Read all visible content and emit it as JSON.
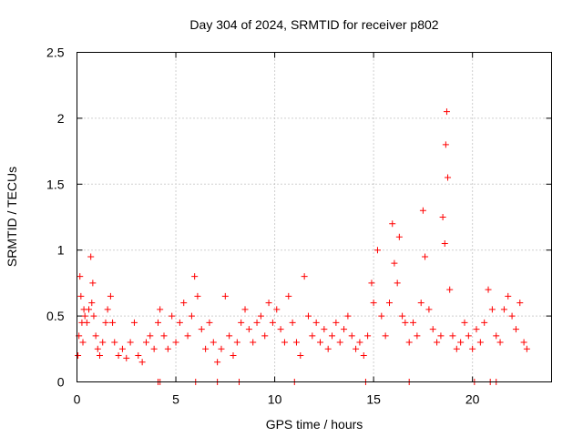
{
  "chart_data": {
    "type": "scatter",
    "title": "Day 304 of 2024, SRMTID for receiver p802",
    "xlabel": "GPS time / hours",
    "ylabel": "SRMTID / TECUs",
    "xlim": [
      0,
      24
    ],
    "ylim": [
      0,
      2.5
    ],
    "x_ticks": [
      0,
      5,
      10,
      15,
      20
    ],
    "y_ticks": [
      0,
      0.5,
      1,
      1.5,
      2,
      2.5
    ],
    "x_tick_labels": [
      "0",
      "5",
      "10",
      "15",
      "20"
    ],
    "y_tick_labels": [
      "0",
      "0.5",
      "1",
      "1.5",
      "2",
      "2.5"
    ],
    "grid": true,
    "marker": "+",
    "color": "#ff0000",
    "series": [
      {
        "name": "SRMTID",
        "points": [
          [
            0.05,
            0.2
          ],
          [
            0.1,
            0.35
          ],
          [
            0.15,
            0.8
          ],
          [
            0.2,
            0.65
          ],
          [
            0.25,
            0.45
          ],
          [
            0.3,
            0.3
          ],
          [
            0.35,
            0.55
          ],
          [
            0.4,
            0.5
          ],
          [
            0.5,
            0.45
          ],
          [
            0.6,
            0.55
          ],
          [
            0.7,
            0.95
          ],
          [
            0.75,
            0.6
          ],
          [
            0.8,
            0.75
          ],
          [
            0.85,
            0.5
          ],
          [
            0.95,
            0.35
          ],
          [
            1.05,
            0.25
          ],
          [
            1.15,
            0.2
          ],
          [
            1.3,
            0.3
          ],
          [
            1.45,
            0.45
          ],
          [
            1.55,
            0.55
          ],
          [
            1.7,
            0.65
          ],
          [
            1.8,
            0.45
          ],
          [
            1.9,
            0.3
          ],
          [
            2.1,
            0.2
          ],
          [
            2.3,
            0.25
          ],
          [
            2.5,
            0.18
          ],
          [
            2.7,
            0.3
          ],
          [
            2.9,
            0.45
          ],
          [
            3.1,
            0.2
          ],
          [
            3.3,
            0.15
          ],
          [
            3.5,
            0.3
          ],
          [
            3.7,
            0.35
          ],
          [
            3.9,
            0.25
          ],
          [
            4.1,
            0.45
          ],
          [
            4.2,
            0.55
          ],
          [
            4.4,
            0.35
          ],
          [
            4.6,
            0.25
          ],
          [
            4.8,
            0.5
          ],
          [
            5.0,
            0.3
          ],
          [
            5.2,
            0.45
          ],
          [
            5.4,
            0.6
          ],
          [
            5.6,
            0.35
          ],
          [
            5.8,
            0.5
          ],
          [
            5.95,
            0.8
          ],
          [
            6.1,
            0.65
          ],
          [
            6.3,
            0.4
          ],
          [
            6.5,
            0.25
          ],
          [
            6.7,
            0.45
          ],
          [
            6.9,
            0.3
          ],
          [
            7.1,
            0.15
          ],
          [
            7.3,
            0.25
          ],
          [
            7.5,
            0.65
          ],
          [
            7.7,
            0.35
          ],
          [
            7.9,
            0.2
          ],
          [
            8.1,
            0.3
          ],
          [
            8.3,
            0.45
          ],
          [
            8.5,
            0.55
          ],
          [
            8.7,
            0.4
          ],
          [
            8.9,
            0.3
          ],
          [
            9.1,
            0.45
          ],
          [
            9.3,
            0.5
          ],
          [
            9.5,
            0.35
          ],
          [
            9.7,
            0.6
          ],
          [
            9.9,
            0.45
          ],
          [
            10.1,
            0.55
          ],
          [
            10.3,
            0.4
          ],
          [
            10.5,
            0.3
          ],
          [
            10.7,
            0.65
          ],
          [
            10.9,
            0.45
          ],
          [
            11.1,
            0.3
          ],
          [
            11.3,
            0.2
          ],
          [
            11.5,
            0.8
          ],
          [
            11.7,
            0.5
          ],
          [
            11.9,
            0.35
          ],
          [
            12.1,
            0.45
          ],
          [
            12.3,
            0.3
          ],
          [
            12.5,
            0.4
          ],
          [
            12.7,
            0.25
          ],
          [
            12.9,
            0.35
          ],
          [
            13.1,
            0.45
          ],
          [
            13.3,
            0.3
          ],
          [
            13.5,
            0.4
          ],
          [
            13.7,
            0.5
          ],
          [
            13.9,
            0.35
          ],
          [
            14.1,
            0.25
          ],
          [
            14.3,
            0.3
          ],
          [
            14.5,
            0.2
          ],
          [
            14.7,
            0.35
          ],
          [
            14.9,
            0.75
          ],
          [
            15.0,
            0.6
          ],
          [
            15.2,
            1.0
          ],
          [
            15.4,
            0.5
          ],
          [
            15.6,
            0.35
          ],
          [
            15.8,
            0.6
          ],
          [
            15.95,
            1.2
          ],
          [
            16.05,
            0.9
          ],
          [
            16.2,
            0.75
          ],
          [
            16.3,
            1.1
          ],
          [
            16.45,
            0.5
          ],
          [
            16.6,
            0.45
          ],
          [
            16.8,
            0.3
          ],
          [
            17.0,
            0.45
          ],
          [
            17.2,
            0.35
          ],
          [
            17.4,
            0.6
          ],
          [
            17.5,
            1.3
          ],
          [
            17.6,
            0.95
          ],
          [
            17.8,
            0.55
          ],
          [
            18.0,
            0.4
          ],
          [
            18.2,
            0.3
          ],
          [
            18.4,
            0.35
          ],
          [
            18.5,
            1.25
          ],
          [
            18.6,
            1.05
          ],
          [
            18.65,
            1.8
          ],
          [
            18.7,
            2.05
          ],
          [
            18.75,
            1.55
          ],
          [
            18.85,
            0.7
          ],
          [
            19.0,
            0.35
          ],
          [
            19.2,
            0.25
          ],
          [
            19.4,
            0.3
          ],
          [
            19.6,
            0.45
          ],
          [
            19.8,
            0.35
          ],
          [
            20.0,
            0.25
          ],
          [
            20.2,
            0.4
          ],
          [
            20.4,
            0.3
          ],
          [
            20.6,
            0.45
          ],
          [
            20.8,
            0.7
          ],
          [
            21.0,
            0.55
          ],
          [
            21.2,
            0.35
          ],
          [
            21.4,
            0.3
          ],
          [
            21.6,
            0.55
          ],
          [
            21.8,
            0.65
          ],
          [
            22.0,
            0.5
          ],
          [
            22.2,
            0.4
          ],
          [
            22.4,
            0.6
          ],
          [
            22.6,
            0.3
          ],
          [
            22.75,
            0.25
          ]
        ],
        "zero_points": [
          4.1,
          4.2,
          6.0,
          7.1,
          8.2,
          11.0,
          14.6,
          16.8,
          20.1,
          20.9,
          21.2
        ]
      }
    ]
  }
}
